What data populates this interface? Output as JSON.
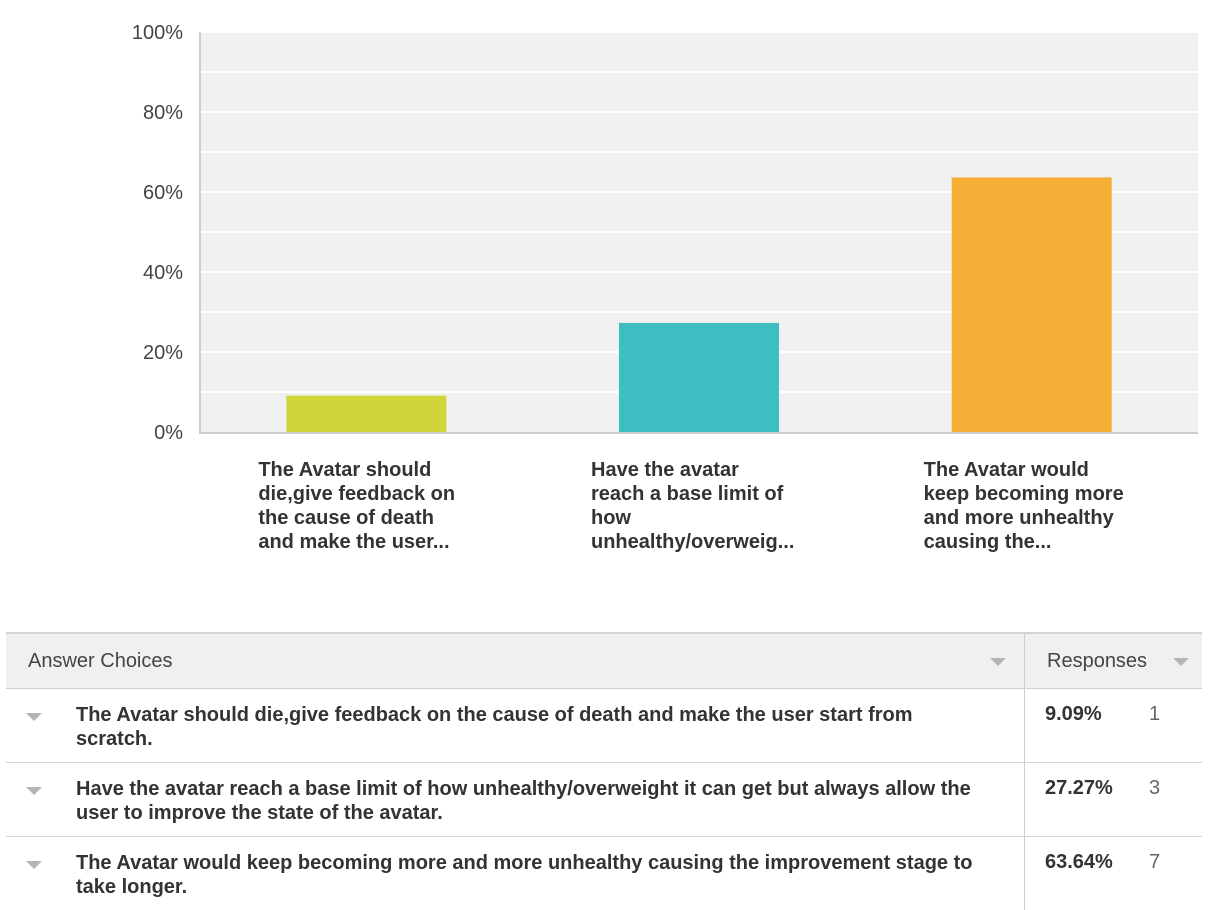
{
  "chart_data": {
    "type": "bar",
    "categories": [
      "The Avatar should die,give feedback on the cause of death and make the user...",
      "Have the avatar reach a base limit of how unhealthy/overweig...",
      "The Avatar would keep becoming more and more unhealthy causing the..."
    ],
    "category_lines": [
      [
        "The Avatar should",
        "die,give feedback on",
        "the cause of death",
        "and make the user..."
      ],
      [
        "Have the avatar",
        "reach a base limit of",
        "how",
        "unhealthy/overweig..."
      ],
      [
        "The Avatar would",
        "keep becoming more",
        "and more unhealthy",
        "causing the..."
      ]
    ],
    "values": [
      9.09,
      27.27,
      63.64
    ],
    "colors": [
      "#d0d53a",
      "#3dbfc1",
      "#f5ae36"
    ],
    "ylim": [
      0,
      100
    ],
    "yticks": [
      "0%",
      "20%",
      "40%",
      "60%",
      "80%",
      "100%"
    ],
    "grid": true,
    "xlabel": "",
    "ylabel": ""
  },
  "table": {
    "header_choice": "Answer Choices",
    "header_responses": "Responses",
    "rows": [
      {
        "choice": "The Avatar should die,give feedback on the cause of death and make the user start from scratch.",
        "percent": "9.09%",
        "count": "1"
      },
      {
        "choice": "Have the avatar reach a base limit of how unhealthy/overweight it can get but always allow the user to improve the state of the avatar.",
        "percent": "27.27%",
        "count": "3"
      },
      {
        "choice": "The Avatar would keep becoming more and more unhealthy causing the improvement stage to take longer.",
        "percent": "63.64%",
        "count": "7"
      }
    ]
  }
}
